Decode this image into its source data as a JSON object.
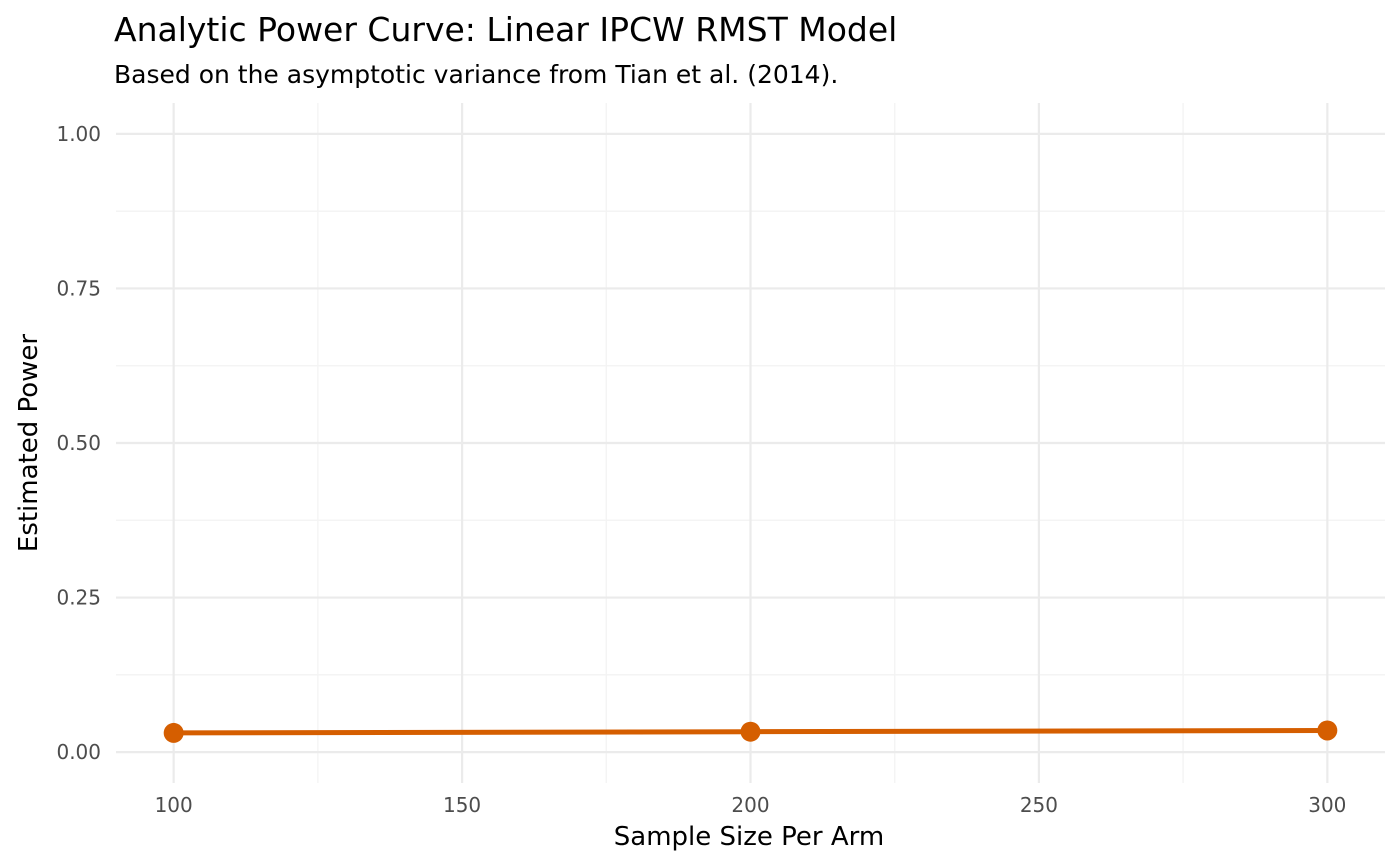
{
  "chart_data": {
    "type": "line",
    "title": "Analytic Power Curve: Linear IPCW RMST Model",
    "subtitle": "Based on the asymptotic variance from Tian et al. (2014).",
    "xlabel": "Sample Size Per Arm",
    "ylabel": "Estimated Power",
    "x": [
      100,
      200,
      300
    ],
    "series": [
      {
        "values": [
          0.031,
          0.033,
          0.035
        ]
      }
    ],
    "xlim": [
      90,
      310
    ],
    "ylim": [
      -0.05,
      1.05
    ],
    "xticks": [
      100,
      150,
      200,
      250,
      300
    ],
    "xtick_labels": [
      "100",
      "150",
      "200",
      "250",
      "300"
    ],
    "yticks": [
      0,
      0.25,
      0.5,
      0.75,
      1.0
    ],
    "ytick_labels": [
      "0.00",
      "0.25",
      "0.50",
      "0.75",
      "1.00"
    ],
    "grid": true,
    "legend": "none",
    "colors": {
      "line": "#D55E00",
      "grid": "#ebebeb",
      "tick_text": "#4d4d4d"
    }
  }
}
